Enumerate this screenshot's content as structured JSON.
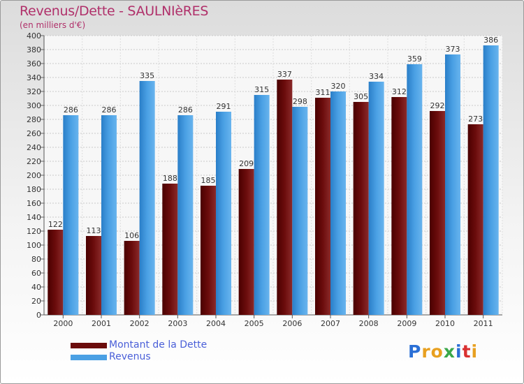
{
  "chart_data": {
    "type": "bar",
    "title": "Revenus/Dette - SAULNIèRES",
    "subtitle": "(en milliers d'€)",
    "categories": [
      "2000",
      "2001",
      "2002",
      "2003",
      "2004",
      "2005",
      "2006",
      "2007",
      "2008",
      "2009",
      "2010",
      "2011"
    ],
    "series": [
      {
        "name": "Montant de la Dette",
        "color": "#6b0c0c",
        "values": [
          122,
          113,
          106,
          188,
          185,
          209,
          337,
          311,
          305,
          312,
          292,
          273
        ]
      },
      {
        "name": "Revenus",
        "color": "#4aa0e4",
        "values": [
          286,
          286,
          335,
          286,
          291,
          315,
          298,
          320,
          334,
          359,
          373,
          386
        ]
      }
    ],
    "ylim": [
      0,
      400
    ],
    "ytick_step": 20,
    "grid": true,
    "xlabel": "",
    "ylabel": ""
  },
  "brand": "Proxiti"
}
